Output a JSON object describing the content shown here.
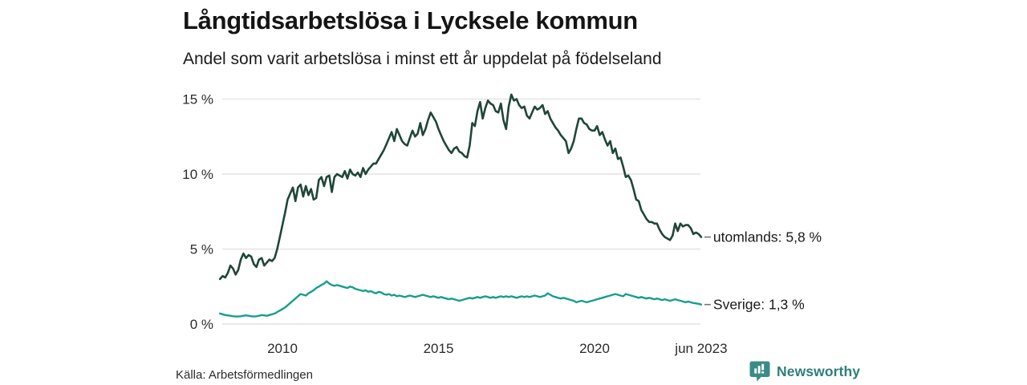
{
  "header": {
    "title": "Långtidsarbetslösa i Lycksele kommun",
    "subtitle": "Andel som varit arbetslösa i minst ett år uppdelat på födelseland"
  },
  "footer": {
    "source": "Källa: Arbetsförmedlingen",
    "logo_text": "Newsworthy",
    "logo_icon": "bar-chart-speech-bubble-icon",
    "logo_color": "#3a8c86"
  },
  "chart_data": {
    "type": "line",
    "title": "Långtidsarbetslösa i Lycksele kommun",
    "subtitle": "Andel som varit arbetslösa i minst ett år uppdelat på födelseland",
    "unit": "%",
    "grid": true,
    "legend_position": "right-of-line-end",
    "x_start": {
      "year": 2008,
      "month": 1
    },
    "x_end": {
      "year": 2023,
      "month": 6
    },
    "frequency": "monthly",
    "ylim": [
      0,
      15.5
    ],
    "y_ticks": [
      {
        "label": "0 %",
        "value": 0
      },
      {
        "label": "5 %",
        "value": 5
      },
      {
        "label": "10 %",
        "value": 10
      },
      {
        "label": "15 %",
        "value": 15
      }
    ],
    "x_ticks": [
      {
        "label": "2010",
        "year": 2010.0
      },
      {
        "label": "2015",
        "year": 2015.0
      },
      {
        "label": "2020",
        "year": 2020.0
      },
      {
        "label": "jun 2023",
        "year": 2023.417
      }
    ],
    "colors": {
      "gridline": "#e4e4e4",
      "tick_text": "#2b2b2b",
      "legend_text": "#1a1a1a",
      "legend_dash": "#777777"
    },
    "series": [
      {
        "name": "utomlands",
        "end_label": "utomlands: 5,8 %",
        "last_value": 5.8,
        "color": "#1f4639",
        "stroke_width": 2.6,
        "values": [
          3.0,
          3.2,
          3.1,
          3.4,
          3.9,
          3.7,
          3.3,
          3.6,
          4.3,
          4.7,
          4.4,
          4.6,
          4.5,
          4.0,
          3.8,
          4.3,
          4.4,
          3.9,
          4.1,
          4.3,
          4.2,
          4.4,
          5.0,
          5.8,
          6.6,
          7.4,
          8.3,
          8.7,
          9.1,
          8.2,
          9.1,
          9.3,
          8.5,
          9.2,
          8.6,
          9.0,
          8.3,
          8.4,
          9.6,
          9.8,
          9.2,
          9.8,
          9.9,
          8.8,
          9.8,
          10.0,
          9.9,
          9.8,
          10.2,
          9.7,
          10.3,
          10.0,
          9.9,
          10.1,
          9.8,
          10.4,
          10.0,
          10.3,
          10.5,
          10.7,
          10.7,
          11.0,
          11.3,
          11.6,
          12.0,
          12.4,
          12.8,
          12.2,
          13.0,
          12.6,
          12.2,
          12.0,
          11.9,
          12.4,
          12.9,
          12.5,
          12.7,
          13.4,
          12.6,
          13.0,
          13.6,
          14.1,
          13.8,
          13.5,
          13.0,
          12.6,
          12.2,
          11.9,
          11.6,
          11.4,
          11.7,
          11.8,
          11.5,
          11.4,
          11.2,
          11.1,
          11.9,
          13.4,
          13.2,
          14.2,
          14.8,
          13.7,
          14.4,
          14.9,
          14.7,
          14.6,
          14.2,
          14.1,
          14.7,
          13.6,
          13.0,
          14.5,
          15.3,
          14.9,
          15.0,
          14.6,
          14.4,
          14.5,
          13.9,
          13.7,
          14.1,
          14.5,
          14.3,
          14.4,
          14.6,
          14.0,
          14.2,
          13.7,
          13.4,
          13.1,
          12.9,
          12.6,
          12.4,
          12.2,
          11.4,
          11.7,
          12.2,
          13.0,
          13.7,
          13.7,
          13.4,
          13.3,
          13.0,
          12.9,
          12.9,
          13.2,
          12.6,
          12.8,
          12.3,
          11.9,
          12.2,
          11.4,
          11.7,
          11.0,
          11.1,
          10.5,
          9.8,
          9.9,
          9.6,
          9.0,
          8.3,
          8.2,
          7.6,
          7.3,
          7.0,
          6.8,
          6.8,
          6.7,
          6.7,
          6.3,
          6.0,
          5.8,
          5.7,
          5.6,
          5.9,
          6.7,
          6.2,
          6.7,
          6.5,
          6.6,
          6.6,
          6.4,
          6.0,
          6.1,
          6.0,
          5.8
        ]
      },
      {
        "name": "Sverige",
        "end_label": "Sverige: 1,3 %",
        "last_value": 1.3,
        "color": "#169e8e",
        "stroke_width": 2.4,
        "values": [
          0.7,
          0.65,
          0.6,
          0.58,
          0.55,
          0.52,
          0.5,
          0.5,
          0.52,
          0.55,
          0.58,
          0.55,
          0.52,
          0.5,
          0.52,
          0.55,
          0.6,
          0.58,
          0.55,
          0.6,
          0.65,
          0.7,
          0.8,
          0.9,
          1.0,
          1.1,
          1.25,
          1.4,
          1.55,
          1.7,
          1.85,
          2.0,
          1.95,
          1.9,
          2.05,
          2.15,
          2.25,
          2.4,
          2.5,
          2.6,
          2.7,
          2.85,
          2.7,
          2.6,
          2.55,
          2.6,
          2.55,
          2.5,
          2.45,
          2.4,
          2.5,
          2.45,
          2.35,
          2.3,
          2.25,
          2.2,
          2.25,
          2.15,
          2.2,
          2.1,
          2.05,
          2.15,
          2.1,
          2.0,
          1.95,
          2.0,
          1.9,
          1.95,
          1.85,
          1.9,
          1.85,
          1.8,
          1.85,
          1.9,
          1.85,
          1.8,
          1.85,
          1.9,
          1.95,
          1.9,
          1.85,
          1.8,
          1.85,
          1.8,
          1.75,
          1.8,
          1.75,
          1.7,
          1.65,
          1.7,
          1.65,
          1.6,
          1.55,
          1.6,
          1.65,
          1.7,
          1.75,
          1.7,
          1.75,
          1.8,
          1.75,
          1.8,
          1.85,
          1.8,
          1.75,
          1.8,
          1.75,
          1.8,
          1.85,
          1.8,
          1.85,
          1.8,
          1.85,
          1.8,
          1.75,
          1.8,
          1.85,
          1.8,
          1.85,
          1.8,
          1.85,
          1.9,
          1.85,
          1.8,
          1.85,
          1.9,
          2.05,
          1.95,
          1.85,
          1.8,
          1.75,
          1.7,
          1.75,
          1.7,
          1.65,
          1.6,
          1.55,
          1.45,
          1.5,
          1.55,
          1.5,
          1.45,
          1.5,
          1.55,
          1.6,
          1.65,
          1.7,
          1.75,
          1.8,
          1.85,
          1.9,
          1.95,
          2.0,
          1.95,
          1.9,
          1.85,
          2.0,
          1.95,
          1.9,
          1.85,
          1.8,
          1.75,
          1.8,
          1.75,
          1.7,
          1.75,
          1.7,
          1.65,
          1.7,
          1.65,
          1.6,
          1.65,
          1.6,
          1.55,
          1.6,
          1.65,
          1.6,
          1.55,
          1.5,
          1.45,
          1.5,
          1.45,
          1.4,
          1.38,
          1.35,
          1.3
        ]
      }
    ]
  }
}
